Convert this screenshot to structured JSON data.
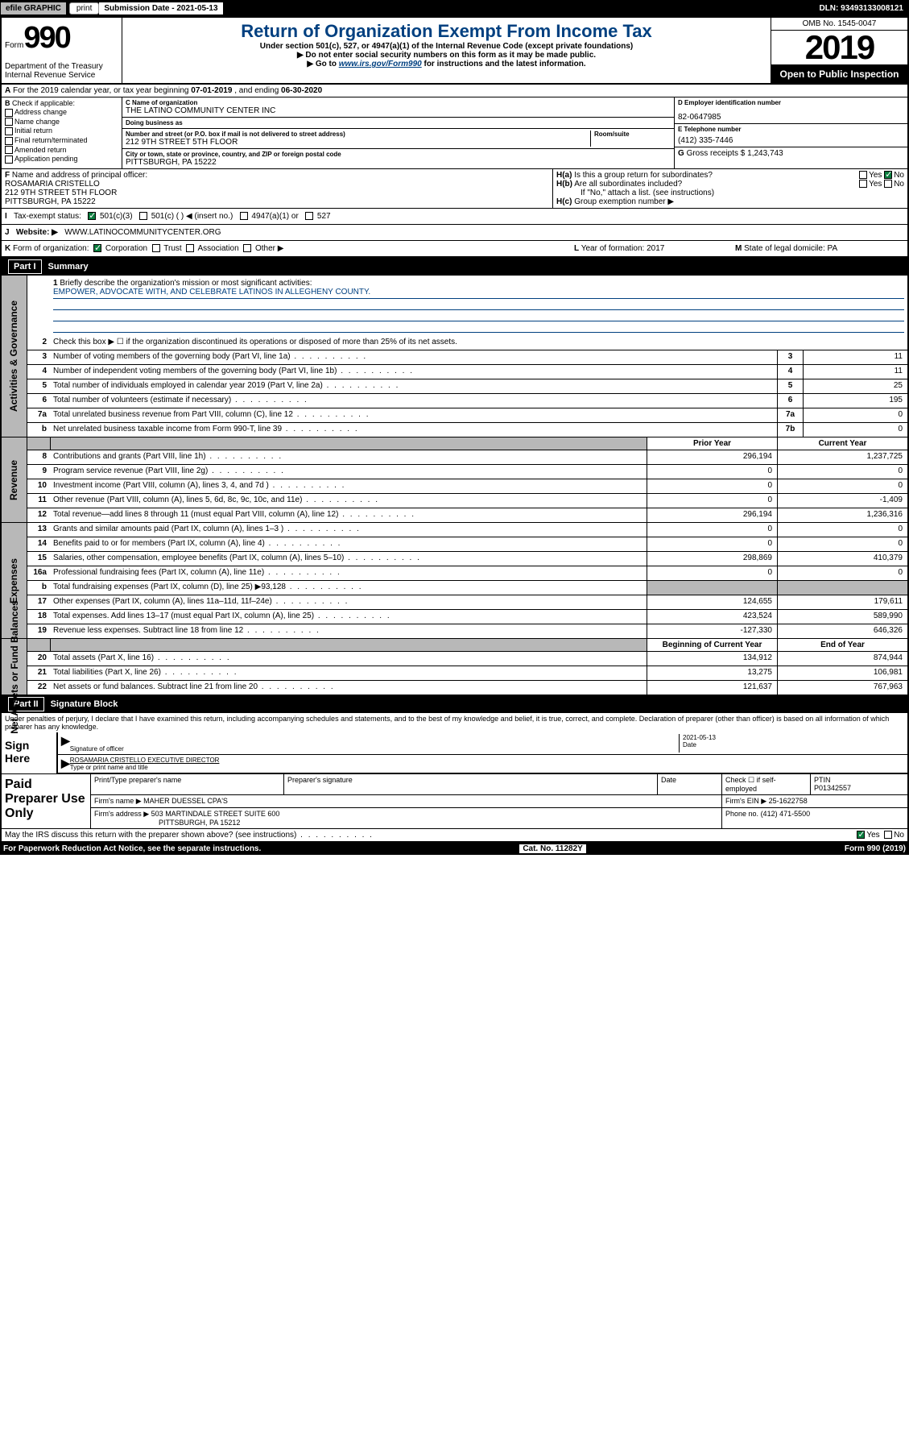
{
  "topbar": {
    "efile": "efile GRAPHIC",
    "print": "print",
    "submission": "Submission Date - 2021-05-13",
    "dln": "DLN: 93493133008121"
  },
  "header": {
    "form_label": "Form",
    "form_num": "990",
    "dept": "Department of the Treasury Internal Revenue Service",
    "title": "Return of Organization Exempt From Income Tax",
    "subtitle": "Under section 501(c), 527, or 4947(a)(1) of the Internal Revenue Code (except private foundations)",
    "instr1": "▶ Do not enter social security numbers on this form as it may be made public.",
    "instr2_pre": "▶ Go to ",
    "instr2_link": "www.irs.gov/Form990",
    "instr2_post": " for instructions and the latest information.",
    "omb": "OMB No. 1545-0047",
    "year": "2019",
    "inspection": "Open to Public Inspection"
  },
  "row_a": {
    "label": "A",
    "text_pre": "For the 2019 calendar year, or tax year beginning ",
    "begin": "07-01-2019",
    "text_mid": " , and ending ",
    "end": "06-30-2020"
  },
  "col_b": {
    "label": "B",
    "intro": "Check if applicable:",
    "items": [
      "Address change",
      "Name change",
      "Initial return",
      "Final return/terminated",
      "Amended return",
      "Application pending"
    ]
  },
  "col_c": {
    "name_label": "C Name of organization",
    "name": "THE LATINO COMMUNITY CENTER INC",
    "dba_label": "Doing business as",
    "dba": "",
    "addr_label": "Number and street (or P.O. box if mail is not delivered to street address)",
    "room_label": "Room/suite",
    "addr": "212 9TH STREET 5TH FLOOR",
    "city_label": "City or town, state or province, country, and ZIP or foreign postal code",
    "city": "PITTSBURGH, PA  15222"
  },
  "col_d": {
    "ein_label": "D Employer identification number",
    "ein": "82-0647985",
    "phone_label": "E Telephone number",
    "phone": "(412) 335-7446",
    "gross_label": "G",
    "gross_text": "Gross receipts $",
    "gross": "1,243,743"
  },
  "f_section": {
    "label": "F",
    "text": "Name and address of principal officer:",
    "name": "ROSAMARIA CRISTELLO",
    "addr1": "212 9TH STREET 5TH FLOOR",
    "addr2": "PITTSBURGH, PA  15222"
  },
  "h_section": {
    "ha_label": "H(a)",
    "ha_text": "Is this a group return for subordinates?",
    "hb_label": "H(b)",
    "hb_text": "Are all subordinates included?",
    "hb_note": "If \"No,\" attach a list. (see instructions)",
    "hc_label": "H(c)",
    "hc_text": "Group exemption number ▶"
  },
  "tax_status": {
    "label": "I",
    "text": "Tax-exempt status:",
    "opt1": "501(c)(3)",
    "opt2": "501(c) (   ) ◀ (insert no.)",
    "opt3": "4947(a)(1) or",
    "opt4": "527"
  },
  "website": {
    "label": "J",
    "text": "Website: ▶",
    "url": "WWW.LATINOCOMMUNITYCENTER.ORG"
  },
  "k_row": {
    "label": "K",
    "text": "Form of organization:",
    "opts": [
      "Corporation",
      "Trust",
      "Association",
      "Other ▶"
    ],
    "l_label": "L",
    "l_text": "Year of formation:",
    "l_val": "2017",
    "m_label": "M",
    "m_text": "State of legal domicile:",
    "m_val": "PA"
  },
  "part1": {
    "label": "Part I",
    "title": "Summary"
  },
  "mission": {
    "num": "1",
    "label": "Briefly describe the organization's mission or most significant activities:",
    "text": "EMPOWER, ADVOCATE WITH, AND CELEBRATE LATINOS IN ALLEGHENY COUNTY."
  },
  "governance": {
    "side": "Activities & Governance",
    "lines": [
      {
        "num": "2",
        "text": "Check this box ▶ ☐ if the organization discontinued its operations or disposed of more than 25% of its net assets."
      },
      {
        "num": "3",
        "text": "Number of voting members of the governing body (Part VI, line 1a)",
        "box": "3",
        "val": "11"
      },
      {
        "num": "4",
        "text": "Number of independent voting members of the governing body (Part VI, line 1b)",
        "box": "4",
        "val": "11"
      },
      {
        "num": "5",
        "text": "Total number of individuals employed in calendar year 2019 (Part V, line 2a)",
        "box": "5",
        "val": "25"
      },
      {
        "num": "6",
        "text": "Total number of volunteers (estimate if necessary)",
        "box": "6",
        "val": "195"
      },
      {
        "num": "7a",
        "text": "Total unrelated business revenue from Part VIII, column (C), line 12",
        "box": "7a",
        "val": "0"
      },
      {
        "num": "b",
        "text": "Net unrelated business taxable income from Form 990-T, line 39",
        "box": "7b",
        "val": "0"
      }
    ]
  },
  "revenue": {
    "side": "Revenue",
    "header_prior": "Prior Year",
    "header_current": "Current Year",
    "lines": [
      {
        "num": "8",
        "text": "Contributions and grants (Part VIII, line 1h)",
        "prior": "296,194",
        "current": "1,237,725"
      },
      {
        "num": "9",
        "text": "Program service revenue (Part VIII, line 2g)",
        "prior": "0",
        "current": "0"
      },
      {
        "num": "10",
        "text": "Investment income (Part VIII, column (A), lines 3, 4, and 7d )",
        "prior": "0",
        "current": "0"
      },
      {
        "num": "11",
        "text": "Other revenue (Part VIII, column (A), lines 5, 6d, 8c, 9c, 10c, and 11e)",
        "prior": "0",
        "current": "-1,409"
      },
      {
        "num": "12",
        "text": "Total revenue—add lines 8 through 11 (must equal Part VIII, column (A), line 12)",
        "prior": "296,194",
        "current": "1,236,316"
      }
    ]
  },
  "expenses": {
    "side": "Expenses",
    "lines": [
      {
        "num": "13",
        "text": "Grants and similar amounts paid (Part IX, column (A), lines 1–3 )",
        "prior": "0",
        "current": "0"
      },
      {
        "num": "14",
        "text": "Benefits paid to or for members (Part IX, column (A), line 4)",
        "prior": "0",
        "current": "0"
      },
      {
        "num": "15",
        "text": "Salaries, other compensation, employee benefits (Part IX, column (A), lines 5–10)",
        "prior": "298,869",
        "current": "410,379"
      },
      {
        "num": "16a",
        "text": "Professional fundraising fees (Part IX, column (A), line 11e)",
        "prior": "0",
        "current": "0"
      },
      {
        "num": "b",
        "text": "Total fundraising expenses (Part IX, column (D), line 25) ▶93,128",
        "prior": "",
        "current": "",
        "shaded": true
      },
      {
        "num": "17",
        "text": "Other expenses (Part IX, column (A), lines 11a–11d, 11f–24e)",
        "prior": "124,655",
        "current": "179,611"
      },
      {
        "num": "18",
        "text": "Total expenses. Add lines 13–17 (must equal Part IX, column (A), line 25)",
        "prior": "423,524",
        "current": "589,990"
      },
      {
        "num": "19",
        "text": "Revenue less expenses. Subtract line 18 from line 12",
        "prior": "-127,330",
        "current": "646,326"
      }
    ]
  },
  "netassets": {
    "side": "Net Assets or Fund Balances",
    "header_begin": "Beginning of Current Year",
    "header_end": "End of Year",
    "lines": [
      {
        "num": "20",
        "text": "Total assets (Part X, line 16)",
        "prior": "134,912",
        "current": "874,944"
      },
      {
        "num": "21",
        "text": "Total liabilities (Part X, line 26)",
        "prior": "13,275",
        "current": "106,981"
      },
      {
        "num": "22",
        "text": "Net assets or fund balances. Subtract line 21 from line 20",
        "prior": "121,637",
        "current": "767,963"
      }
    ]
  },
  "part2": {
    "label": "Part II",
    "title": "Signature Block"
  },
  "sig": {
    "perjury": "Under penalties of perjury, I declare that I have examined this return, including accompanying schedules and statements, and to the best of my knowledge and belief, it is true, correct, and complete. Declaration of preparer (other than officer) is based on all information of which preparer has any knowledge.",
    "sign_here": "Sign Here",
    "sig_officer": "Signature of officer",
    "date": "2021-05-13",
    "date_label": "Date",
    "name": "ROSAMARIA CRISTELLO  EXECUTIVE DIRECTOR",
    "name_label": "Type or print name and title"
  },
  "paid": {
    "label": "Paid Preparer Use Only",
    "print_label": "Print/Type preparer's name",
    "sig_label": "Preparer's signature",
    "date_label": "Date",
    "check_label": "Check ☐ if self-employed",
    "ptin_label": "PTIN",
    "ptin": "P01342557",
    "firm_name_label": "Firm's name    ▶",
    "firm_name": "MAHER DUESSEL CPA'S",
    "firm_ein_label": "Firm's EIN ▶",
    "firm_ein": "25-1622758",
    "firm_addr_label": "Firm's address ▶",
    "firm_addr": "503 MARTINDALE STREET SUITE 600",
    "firm_city": "PITTSBURGH, PA  15212",
    "phone_label": "Phone no.",
    "phone": "(412) 471-5500"
  },
  "bottom": {
    "discuss": "May the IRS discuss this return with the preparer shown above? (see instructions)",
    "paperwork": "For Paperwork Reduction Act Notice, see the separate instructions.",
    "cat": "Cat. No. 11282Y",
    "form": "Form 990 (2019)"
  }
}
